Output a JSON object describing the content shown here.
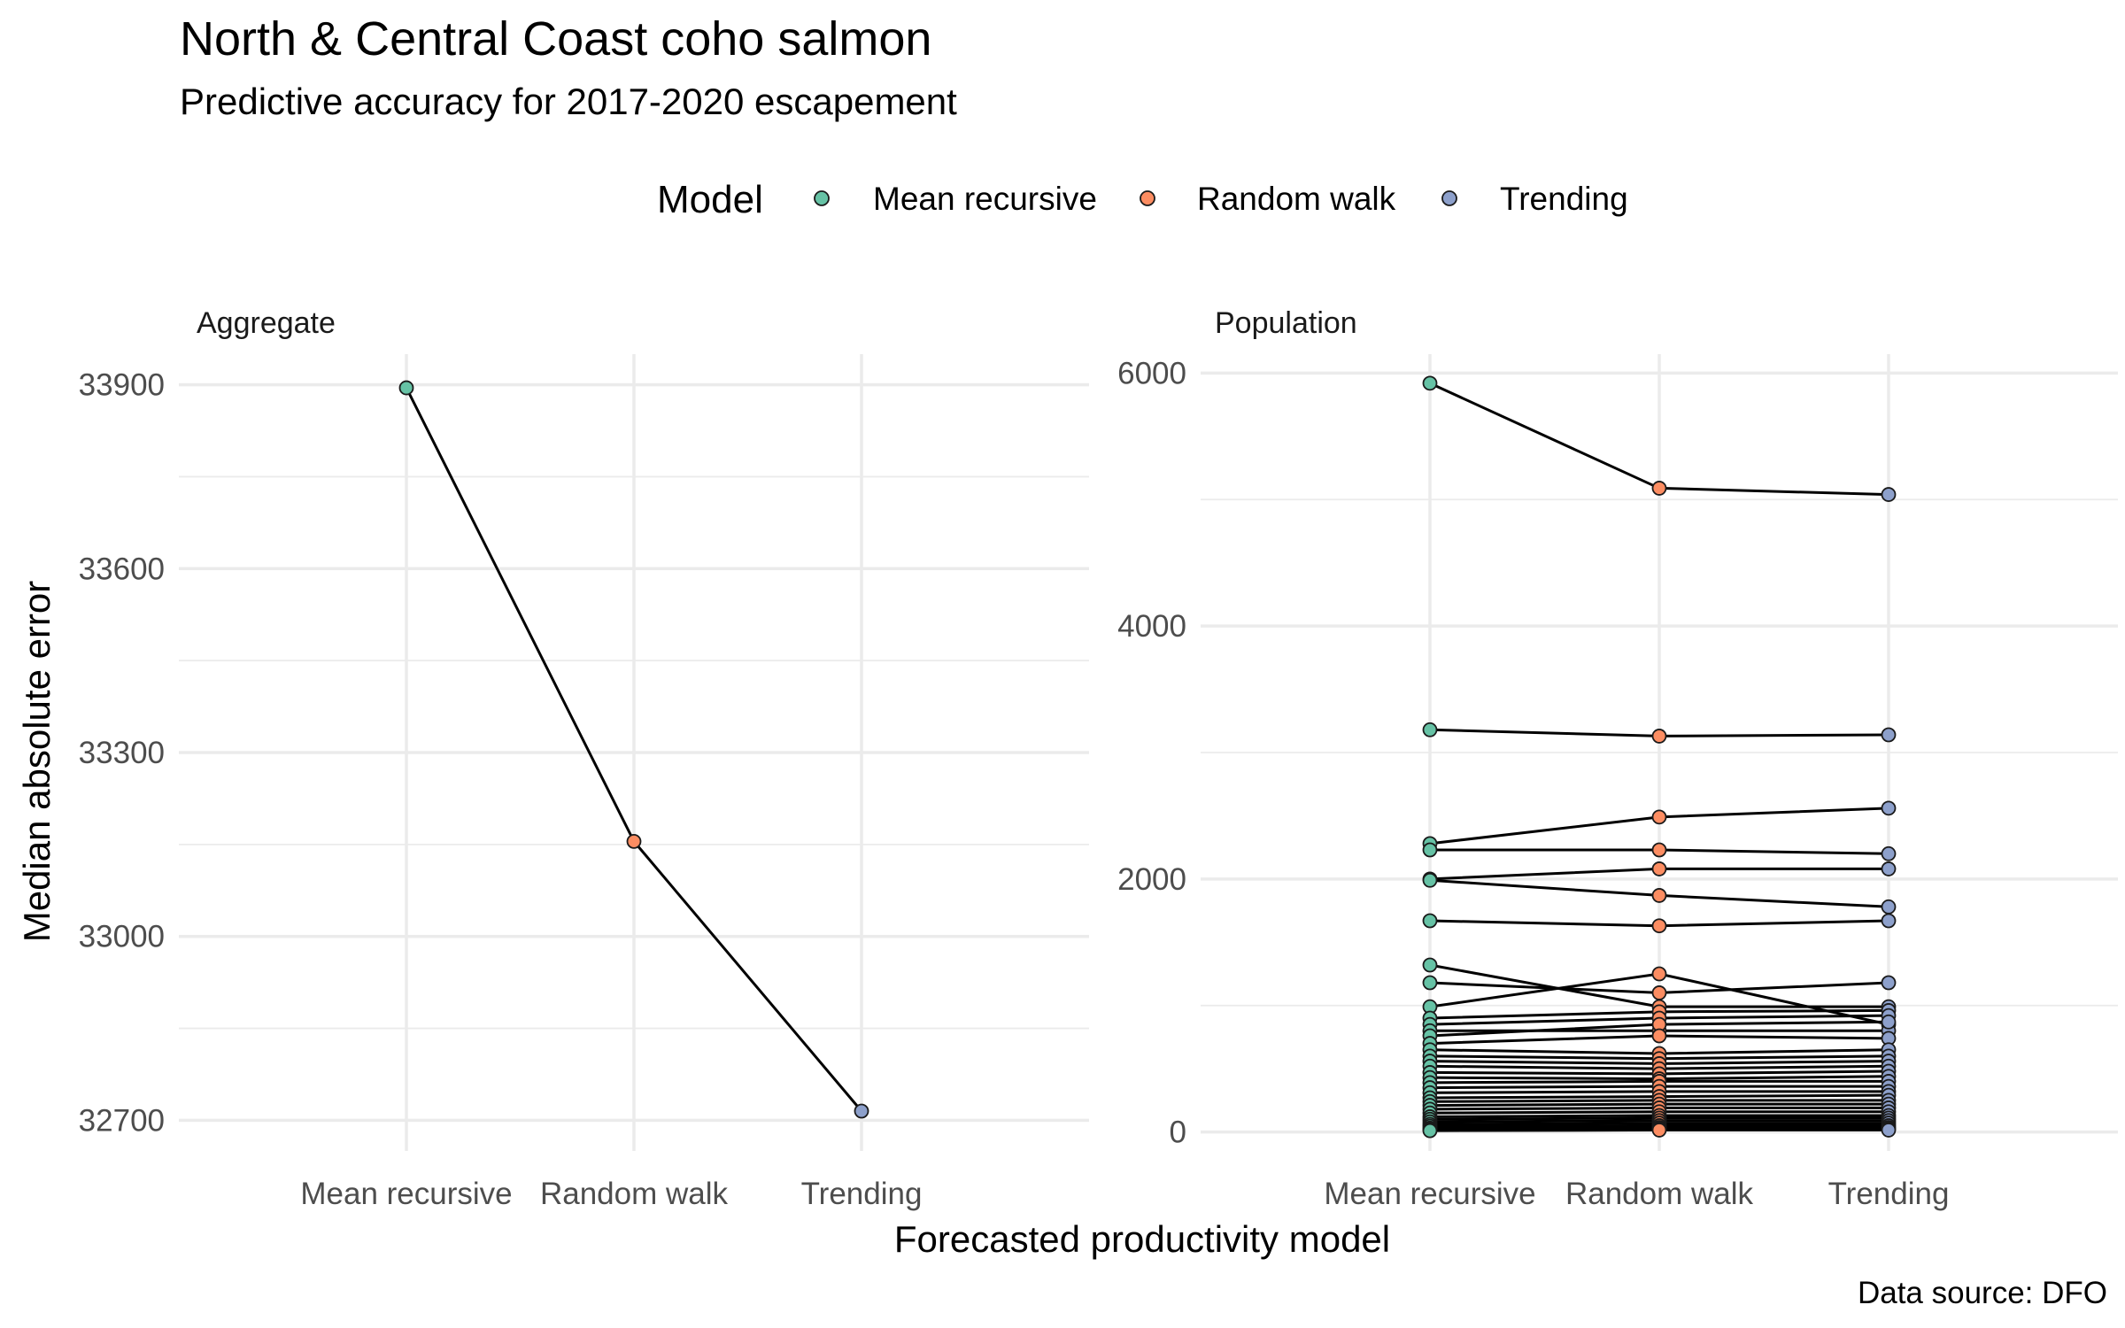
{
  "title": "North & Central Coast coho salmon",
  "subtitle": "Predictive accuracy for 2017-2020 escapement",
  "caption": "Data source: DFO",
  "legend": {
    "title": "Model",
    "items": [
      {
        "label": "Mean recursive",
        "color": "#66c2a5"
      },
      {
        "label": "Random walk",
        "color": "#fc8d62"
      },
      {
        "label": "Trending",
        "color": "#8da0cb"
      }
    ]
  },
  "chart_data": [
    {
      "type": "line",
      "panel": "Aggregate",
      "xlabel": "Forecasted productivity model",
      "ylabel": "Median absolute error",
      "categories": [
        "Mean recursive",
        "Random walk",
        "Trending"
      ],
      "yticks": [
        32700,
        33000,
        33300,
        33600,
        33900
      ],
      "ylim": [
        32650,
        33950
      ],
      "grid": true,
      "series": [
        {
          "values": [
            33895,
            33155,
            32715
          ]
        }
      ]
    },
    {
      "type": "line",
      "panel": "Population",
      "xlabel": "Forecasted productivity model",
      "ylabel": "Median absolute error",
      "categories": [
        "Mean recursive",
        "Random walk",
        "Trending"
      ],
      "yticks": [
        0,
        2000,
        4000,
        6000
      ],
      "ylim": [
        -150,
        6150
      ],
      "grid": true,
      "series": [
        {
          "values": [
            5920,
            5090,
            5040
          ]
        },
        {
          "values": [
            3180,
            3130,
            3140
          ]
        },
        {
          "values": [
            2280,
            2490,
            2560
          ]
        },
        {
          "values": [
            2230,
            2230,
            2200
          ]
        },
        {
          "values": [
            2000,
            2080,
            2080
          ]
        },
        {
          "values": [
            1990,
            1870,
            1780
          ]
        },
        {
          "values": [
            1670,
            1630,
            1670
          ]
        },
        {
          "values": [
            1320,
            990,
            990
          ]
        },
        {
          "values": [
            1180,
            1100,
            1180
          ]
        },
        {
          "values": [
            990,
            1250,
            850
          ]
        },
        {
          "values": [
            900,
            950,
            960
          ]
        },
        {
          "values": [
            850,
            900,
            920
          ]
        },
        {
          "values": [
            800,
            800,
            800
          ]
        },
        {
          "values": [
            760,
            850,
            870
          ]
        },
        {
          "values": [
            700,
            760,
            740
          ]
        },
        {
          "values": [
            650,
            620,
            650
          ]
        },
        {
          "values": [
            600,
            580,
            600
          ]
        },
        {
          "values": [
            560,
            540,
            560
          ]
        },
        {
          "values": [
            520,
            500,
            520
          ]
        },
        {
          "values": [
            470,
            460,
            480
          ]
        },
        {
          "values": [
            430,
            420,
            440
          ]
        },
        {
          "values": [
            390,
            400,
            400
          ]
        },
        {
          "values": [
            350,
            360,
            360
          ]
        },
        {
          "values": [
            310,
            320,
            320
          ]
        },
        {
          "values": [
            270,
            280,
            290
          ]
        },
        {
          "values": [
            240,
            250,
            250
          ]
        },
        {
          "values": [
            210,
            220,
            220
          ]
        },
        {
          "values": [
            180,
            190,
            190
          ]
        },
        {
          "values": [
            150,
            160,
            160
          ]
        },
        {
          "values": [
            120,
            130,
            130
          ]
        },
        {
          "values": [
            100,
            110,
            110
          ]
        },
        {
          "values": [
            80,
            90,
            90
          ]
        },
        {
          "values": [
            60,
            70,
            70
          ]
        },
        {
          "values": [
            45,
            50,
            50
          ]
        },
        {
          "values": [
            30,
            35,
            35
          ]
        },
        {
          "values": [
            20,
            25,
            25
          ]
        },
        {
          "values": [
            10,
            15,
            15
          ]
        }
      ]
    }
  ]
}
